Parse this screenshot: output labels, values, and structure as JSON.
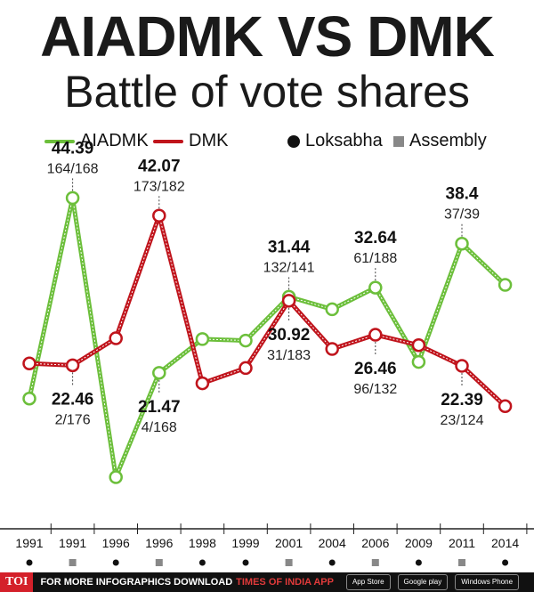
{
  "header": {
    "title": "AIADMK VS DMK",
    "subtitle": "Battle of vote shares"
  },
  "legend": {
    "aiadmk": "AIADMK",
    "dmk": "DMK",
    "loksabha": "Loksabha",
    "assembly": "Assembly"
  },
  "colors": {
    "aiadmk": "#6cbf3b",
    "dmk": "#c0141c",
    "loksabha": "#111111",
    "assembly": "#888888"
  },
  "chart_data": {
    "type": "line",
    "categories": [
      "1991",
      "1991",
      "1996",
      "1996",
      "1998",
      "1999",
      "2001",
      "2004",
      "2006",
      "2009",
      "2011",
      "2014"
    ],
    "election_type": [
      "Loksabha",
      "Assembly",
      "Loksabha",
      "Assembly",
      "Loksabha",
      "Loksabha",
      "Assembly",
      "Loksabha",
      "Assembly",
      "Loksabha",
      "Assembly",
      "Loksabha"
    ],
    "series": [
      {
        "name": "AIADMK",
        "values": [
          18.1,
          44.39,
          7.8,
          21.47,
          25.9,
          25.7,
          31.44,
          29.8,
          32.64,
          22.9,
          38.4,
          33.0
        ]
      },
      {
        "name": "DMK",
        "values": [
          22.7,
          22.46,
          26.0,
          42.07,
          20.1,
          22.1,
          30.92,
          24.6,
          26.46,
          25.1,
          22.39,
          17.1
        ]
      }
    ],
    "annotations": [
      {
        "series": "AIADMK",
        "index": 1,
        "value": "44.39",
        "seats": "164/168"
      },
      {
        "series": "DMK",
        "index": 1,
        "value": "22.46",
        "seats": "2/176"
      },
      {
        "series": "DMK",
        "index": 3,
        "value": "42.07",
        "seats": "173/182"
      },
      {
        "series": "AIADMK",
        "index": 3,
        "value": "21.47",
        "seats": "4/168"
      },
      {
        "series": "AIADMK",
        "index": 6,
        "value": "31.44",
        "seats": "132/141"
      },
      {
        "series": "DMK",
        "index": 6,
        "value": "30.92",
        "seats": "31/183"
      },
      {
        "series": "AIADMK",
        "index": 8,
        "value": "32.64",
        "seats": "61/188"
      },
      {
        "series": "DMK",
        "index": 8,
        "value": "26.46",
        "seats": "96/132"
      },
      {
        "series": "AIADMK",
        "index": 10,
        "value": "38.4",
        "seats": "37/39"
      },
      {
        "series": "DMK",
        "index": 10,
        "value": "22.39",
        "seats": "23/124"
      }
    ],
    "title": "AIADMK VS DMK",
    "ylim": [
      5,
      47
    ],
    "grid": false
  },
  "footer": {
    "logo": "TOI",
    "text": "FOR MORE  INFOGRAPHICS DOWNLOAD",
    "brand": "TIMES OF INDIA APP",
    "stores": [
      "App Store",
      "Google play",
      "Windows Phone"
    ]
  }
}
